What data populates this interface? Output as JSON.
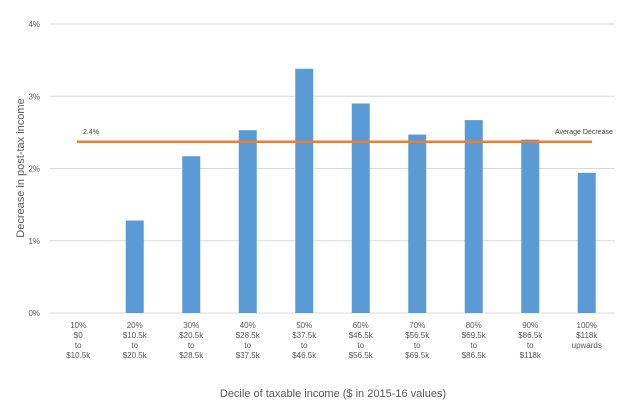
{
  "chart_data": {
    "type": "bar",
    "categories": [
      [
        "10%",
        "$0",
        "to",
        "$10.5k"
      ],
      [
        "20%",
        "$10.5k",
        "to",
        "$20.5k"
      ],
      [
        "30%",
        "$20.5k",
        "to",
        "$28.5k"
      ],
      [
        "40%",
        "$28.5k",
        "to",
        "$37.5k"
      ],
      [
        "50%",
        "$37.5k",
        "to",
        "$46.5k"
      ],
      [
        "60%",
        "$46.5k",
        "to",
        "$56.5k"
      ],
      [
        "70%",
        "$56.5k",
        "to",
        "$69.5k"
      ],
      [
        "80%",
        "$69.5k",
        "to",
        "$86.5k"
      ],
      [
        "90%",
        "$86.5k",
        "to",
        "$118k"
      ],
      [
        "100%",
        "$118k",
        "upwards"
      ]
    ],
    "values": [
      0,
      1.28,
      2.17,
      2.53,
      3.38,
      2.9,
      2.47,
      2.67,
      2.4,
      1.94
    ],
    "ylim": [
      0,
      4
    ],
    "yticks": [
      "0%",
      "1%",
      "2%",
      "3%",
      "4%"
    ],
    "ylabel": "Decrease in post-tax income",
    "xlabel": "Decile of taxable income ($ in 2015-16 values)",
    "grid": true,
    "reference_line": {
      "value": 2.37,
      "value_label": "2.4%",
      "label": "Average Decrease"
    },
    "colors": {
      "bar": "#5B9BD5",
      "reference_line": "#ED7D31",
      "grid": "#D9D9D9",
      "text": "#595959"
    }
  }
}
